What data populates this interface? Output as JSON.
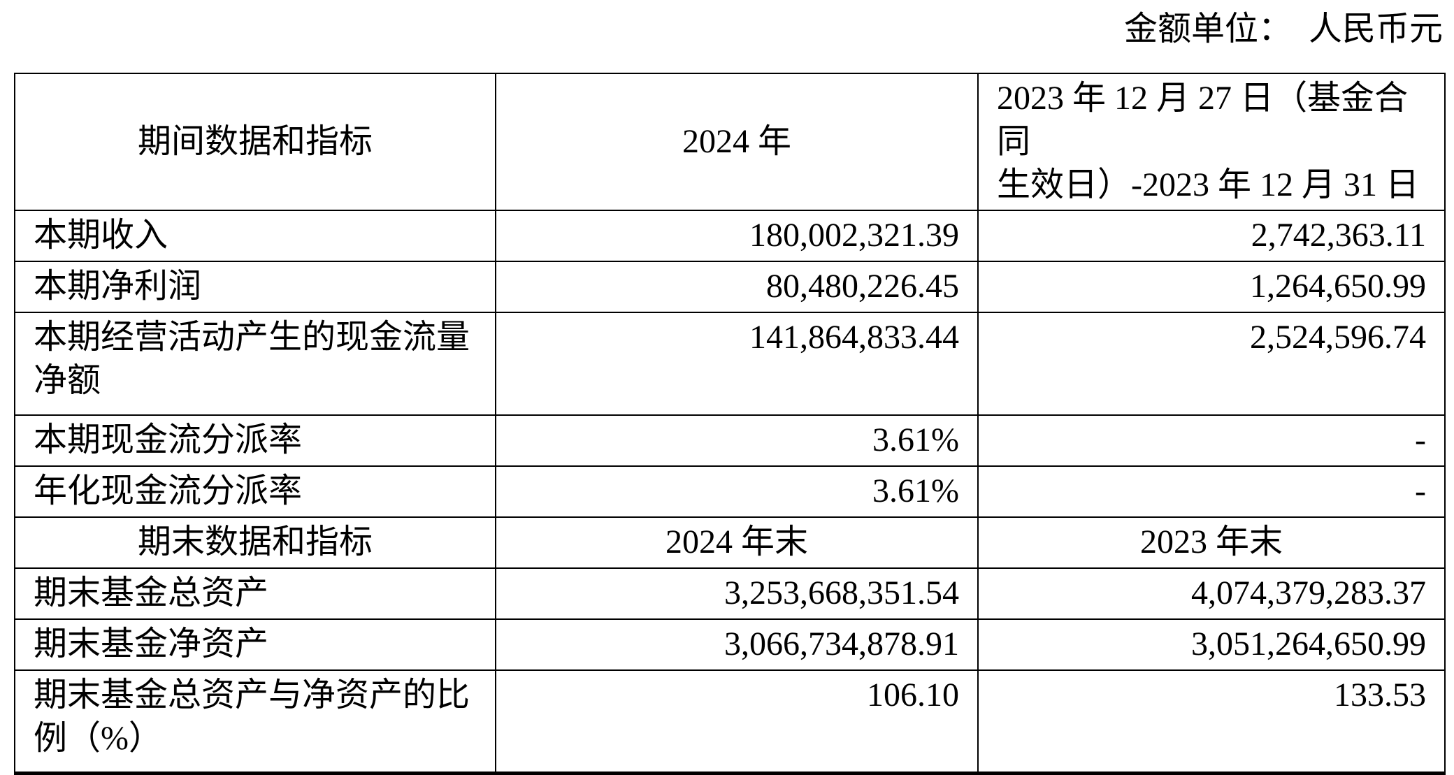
{
  "page": {
    "unit_note": "金额单位：  人民币元"
  },
  "table": {
    "period_header": {
      "col1": "期间数据和指标",
      "col2": "2024 年",
      "col3_line1": "2023 年 12 月 27 日（基金合同",
      "col3_line2": "生效日）-2023 年 12 月 31 日"
    },
    "period_rows": [
      {
        "label": "本期收入",
        "y2024": "180,002,321.39",
        "y2023": "2,742,363.11"
      },
      {
        "label": "本期净利润",
        "y2024": "80,480,226.45",
        "y2023": "1,264,650.99"
      },
      {
        "label": "本期经营活动产生的现金流量净额",
        "y2024": "141,864,833.44",
        "y2023": "2,524,596.74"
      },
      {
        "label": "本期现金流分派率",
        "y2024": "3.61%",
        "y2023": "-"
      },
      {
        "label": "年化现金流分派率",
        "y2024": "3.61%",
        "y2023": "-"
      }
    ],
    "terminal_header": {
      "col1": "期末数据和指标",
      "col2": "2024 年末",
      "col3": "2023 年末"
    },
    "terminal_rows": [
      {
        "label": "期末基金总资产",
        "y2024": "3,253,668,351.54",
        "y2023": "4,074,379,283.37"
      },
      {
        "label": "期末基金净资产",
        "y2024": "3,066,734,878.91",
        "y2023": "3,051,264,650.99"
      },
      {
        "label": "期末基金总资产与净资产的比例（%）",
        "y2024": "106.10",
        "y2023": "133.53"
      }
    ]
  }
}
